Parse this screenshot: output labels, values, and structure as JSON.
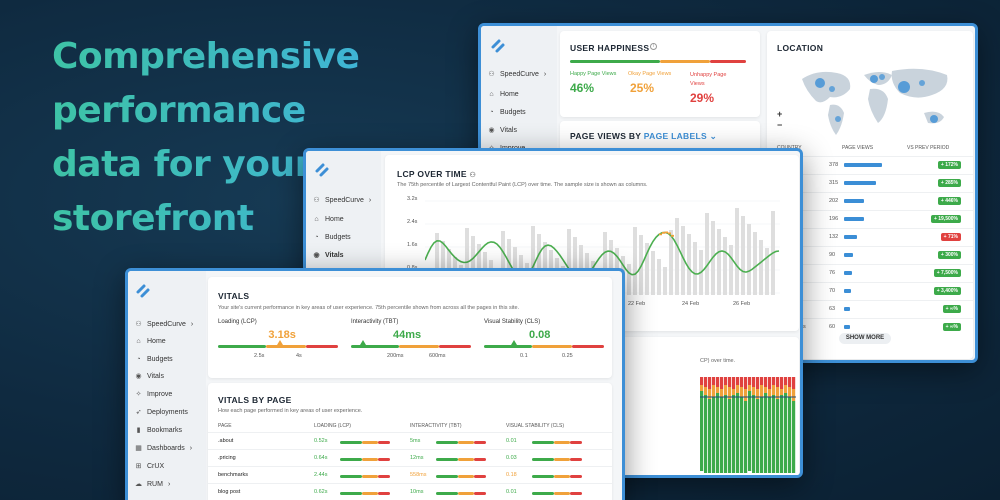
{
  "headline": [
    "Comprehensive",
    "performance",
    "data for your",
    "storefront"
  ],
  "nav": {
    "brand": "SpeedCurve",
    "items": [
      "Home",
      "Budgets",
      "Vitals",
      "Improve",
      "Deployments",
      "Bookmarks",
      "Dashboards",
      "CrUX",
      "RUM"
    ]
  },
  "happiness": {
    "title": "USER HAPPINESS",
    "happy_label": "Happy Page Views",
    "happy_value": "46%",
    "okay_label": "Okay Page Views",
    "okay_value": "25%",
    "unhappy_label": "Unhappy Page Views",
    "unhappy_value": "29%",
    "colors": {
      "happy": "#3daa4a",
      "okay": "#f0a13a",
      "unhappy": "#e0413f"
    }
  },
  "pageviews": {
    "title": "PAGE VIEWS BY ",
    "link": "PAGE LABELS"
  },
  "location": {
    "title": "LOCATION",
    "col_country": "COUNTRY",
    "col_views": "PAGE VIEWS",
    "col_vs": "VS PREV PERIOD",
    "rows": [
      {
        "country": "any",
        "views": "378",
        "change": "+ 172%",
        "bar": 1.0,
        "neg": false
      },
      {
        "country": "",
        "views": "315",
        "change": "+ 285%",
        "bar": 0.83,
        "neg": false
      },
      {
        "country": "ce",
        "views": "202",
        "change": "+ 446%",
        "bar": 0.53,
        "neg": false
      },
      {
        "country": "ed dom",
        "views": "196",
        "change": "+ 19,500%",
        "bar": 0.52,
        "neg": false
      },
      {
        "country": "",
        "views": "132",
        "change": "+ 71%",
        "bar": 0.35,
        "neg": true
      },
      {
        "country": "erlands",
        "views": "90",
        "change": "+ 300%",
        "bar": 0.24,
        "neg": false
      },
      {
        "country": "nd",
        "views": "76",
        "change": "+ 7,500%",
        "bar": 0.2,
        "neg": false
      },
      {
        "country": "ria",
        "views": "70",
        "change": "+ 3,400%",
        "bar": 0.19,
        "neg": false
      },
      {
        "country": "hia",
        "views": "63",
        "change": "+ ∞%",
        "bar": 0.17,
        "neg": false
      },
      {
        "country": "ed Arab rates",
        "views": "60",
        "change": "+ ∞%",
        "bar": 0.16,
        "neg": false
      }
    ],
    "show_more": "SHOW MORE",
    "zoom_in": "+",
    "zoom_out": "−"
  },
  "lcp": {
    "title": "LCP OVER TIME",
    "subtitle": "The 75th percentile of Largest Contentful Paint (LCP) over time. The sample size is shown as columns.",
    "y_ticks": [
      "3.2s",
      "2.4s",
      "1.6s",
      "0.8s"
    ],
    "x_ticks": [
      "22 Feb",
      "24 Feb",
      "26 Feb"
    ],
    "line_color": "#4caf50",
    "peak_color": "#f0a13a"
  },
  "vitals": {
    "title": "VITALS",
    "subtitle": "Your site's current performance in key areas of user experience. 75th percentile shown from across all the pages in this site.",
    "metrics": [
      {
        "label": "Loading (LCP)",
        "value": "3.18s",
        "t1": "2.5s",
        "t2": "4s",
        "color": "#f0a13a",
        "pos": 0.52
      },
      {
        "label": "Interactivity (TBT)",
        "value": "44ms",
        "t1": "200ms",
        "t2": "600ms",
        "color": "#3daa4a",
        "pos": 0.1
      },
      {
        "label": "Visual Stability (CLS)",
        "value": "0.08",
        "t1": "0.1",
        "t2": "0.25",
        "color": "#3daa4a",
        "pos": 0.25
      }
    ]
  },
  "vbp": {
    "title": "VITALS BY PAGE",
    "subtitle": "How each page performed in key areas of user experience.",
    "headers": [
      "PAGE",
      "LOADING (LCP)",
      "INTERACTIVITY (TBT)",
      "VISUAL STABILITY (CLS)"
    ],
    "rows": [
      {
        "page": ".about",
        "lcp": "0.52s",
        "tbt": "5ms",
        "cls": "0.01",
        "lc": "#3daa4a",
        "tc": "#3daa4a",
        "cc": "#3daa4a"
      },
      {
        "page": ".pricing",
        "lcp": "0.64s",
        "tbt": "12ms",
        "cls": "0.03",
        "lc": "#3daa4a",
        "tc": "#3daa4a",
        "cc": "#3daa4a"
      },
      {
        "page": "benchmarks",
        "lcp": "2.44s",
        "tbt": "558ms",
        "cls": "0.18",
        "lc": "#3daa4a",
        "tc": "#f0a13a",
        "cc": "#f0a13a"
      },
      {
        "page": "blog post",
        "lcp": "0.62s",
        "tbt": "10ms",
        "cls": "0.01",
        "lc": "#3daa4a",
        "tc": "#3daa4a",
        "cc": "#3daa4a"
      }
    ]
  },
  "lcp2": {
    "subtitle": "CP) over time."
  }
}
